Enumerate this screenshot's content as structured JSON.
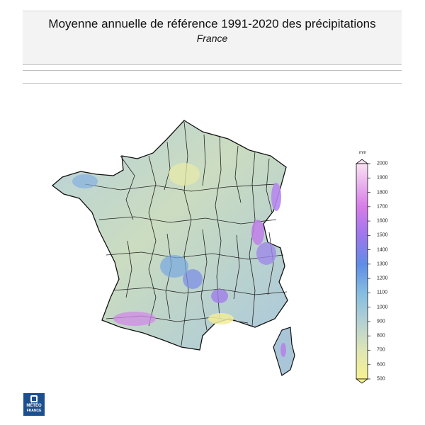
{
  "header": {
    "title": "Moyenne annuelle de référence 1991-2020 des précipitations",
    "subtitle": "France"
  },
  "legend": {
    "unit": "mm",
    "ticks": [
      2000,
      1900,
      1800,
      1700,
      1600,
      1500,
      1400,
      1300,
      1200,
      1100,
      1000,
      900,
      800,
      700,
      600,
      500
    ],
    "min": 500,
    "max": 2000,
    "colors": {
      "500": "#f7f28f",
      "700": "#dfe6b4",
      "900": "#b2d0d3",
      "1100": "#84bde0",
      "1300": "#5f8de6",
      "1500": "#9f76ee",
      "1700": "#d77ce8",
      "2000": "#f9e2f2"
    }
  },
  "map": {
    "region": "France",
    "base_color": "#bfd5c6",
    "boundary_color": "#111111"
  },
  "logo": {
    "line1": "MÉTÉO",
    "line2": "FRANCE"
  }
}
